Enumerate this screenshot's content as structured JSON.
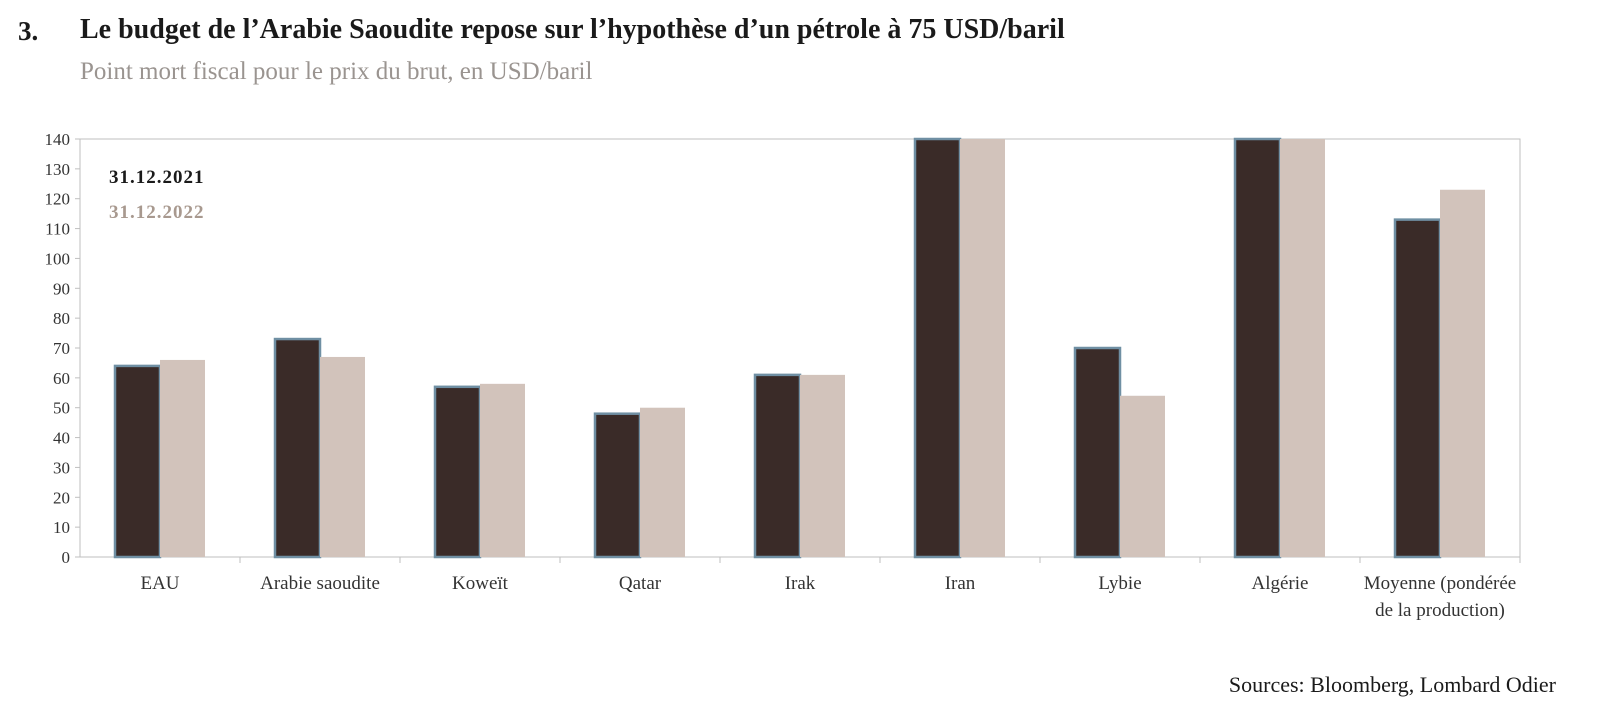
{
  "header": {
    "number": "3.",
    "title": "Le budget de l’Arabie Saoudite repose sur l’hypothèse d’un pétrole à 75 USD/baril",
    "subtitle": "Point mort fiscal pour le prix du brut, en USD/baril"
  },
  "footer": {
    "source": "Sources: Bloomberg, Lombard Odier"
  },
  "colors": {
    "series_2021": "#3a2b28",
    "series_2021_border": "#6f8fa3",
    "series_2022": "#d2c3bb",
    "legend_2022_text": "#a8998f",
    "axis": "#bfbfbf"
  },
  "chart_data": {
    "type": "bar",
    "categories": [
      [
        "EAU"
      ],
      [
        "Arabie saoudite"
      ],
      [
        "Koweït"
      ],
      [
        "Qatar"
      ],
      [
        "Irak"
      ],
      [
        "Iran"
      ],
      [
        "Lybie"
      ],
      [
        "Algérie"
      ],
      [
        "Moyenne (pondérée",
        "de la production)"
      ]
    ],
    "series": [
      {
        "name": "31.12.2021",
        "values": [
          64,
          73,
          57,
          48,
          61,
          140,
          70,
          140,
          113
        ]
      },
      {
        "name": "31.12.2022",
        "values": [
          66,
          67,
          58,
          50,
          61,
          140,
          54,
          140,
          123
        ]
      }
    ],
    "ylim": [
      0,
      140
    ],
    "yticks": [
      0,
      10,
      20,
      30,
      40,
      50,
      60,
      70,
      80,
      90,
      100,
      110,
      120,
      130,
      140
    ],
    "legend_position": "top-left",
    "grid": false
  }
}
